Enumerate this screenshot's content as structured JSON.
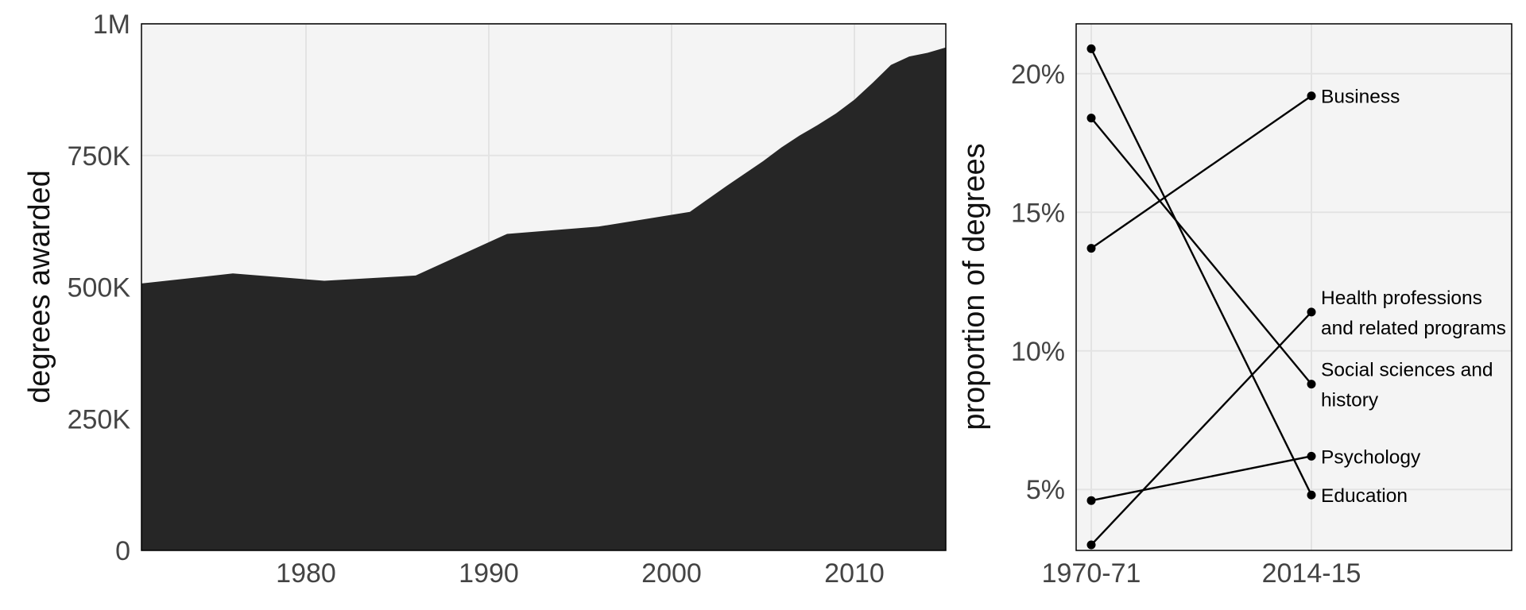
{
  "chart_data": [
    {
      "type": "area",
      "title": "",
      "xlabel": "",
      "ylabel": "degrees awarded",
      "xlim": [
        1971,
        2015
      ],
      "ylim": [
        0,
        1000000
      ],
      "grid": true,
      "x_ticks": [
        1980,
        1990,
        2000,
        2010
      ],
      "x_tick_labels": [
        "1980",
        "1990",
        "2000",
        "2010"
      ],
      "y_ticks": [
        0,
        250000,
        500000,
        750000,
        1000000
      ],
      "y_tick_labels": [
        "0",
        "250K",
        "500K",
        "750K",
        "1M"
      ],
      "fill_color": "#262626",
      "panel_background": "#f4f4f4",
      "x": [
        1971,
        1976,
        1981,
        1986,
        1991,
        1996,
        2001,
        2003,
        2005,
        2006,
        2007,
        2008,
        2009,
        2010,
        2011,
        2012,
        2013,
        2014,
        2015
      ],
      "y": [
        507000,
        526000,
        512000,
        522000,
        601000,
        615000,
        643000,
        692000,
        739000,
        765000,
        788000,
        808000,
        830000,
        856000,
        888000,
        922000,
        938000,
        945000,
        955000
      ]
    },
    {
      "type": "line",
      "subtype": "slope",
      "title": "",
      "xlabel": "",
      "ylabel": "proportion of degrees",
      "categories": [
        "1970-71",
        "2014-15"
      ],
      "ylim": [
        2.8,
        21.8
      ],
      "grid": true,
      "y_ticks": [
        5,
        10,
        15,
        20
      ],
      "y_tick_labels": [
        "5%",
        "10%",
        "15%",
        "20%"
      ],
      "line_color": "#000000",
      "panel_background": "#f4f4f4",
      "series": [
        {
          "name": "Business",
          "label_lines": [
            "Business"
          ],
          "values": [
            13.7,
            19.2
          ]
        },
        {
          "name": "Health professions and related programs",
          "label_lines": [
            "Health professions",
            "and related programs"
          ],
          "values": [
            3.0,
            11.4
          ]
        },
        {
          "name": "Social sciences and history",
          "label_lines": [
            "Social sciences and",
            "history"
          ],
          "values": [
            18.4,
            8.8
          ]
        },
        {
          "name": "Psychology",
          "label_lines": [
            "Psychology"
          ],
          "values": [
            4.6,
            6.2
          ]
        },
        {
          "name": "Education",
          "label_lines": [
            "Education"
          ],
          "values": [
            20.9,
            4.8
          ]
        }
      ]
    }
  ]
}
